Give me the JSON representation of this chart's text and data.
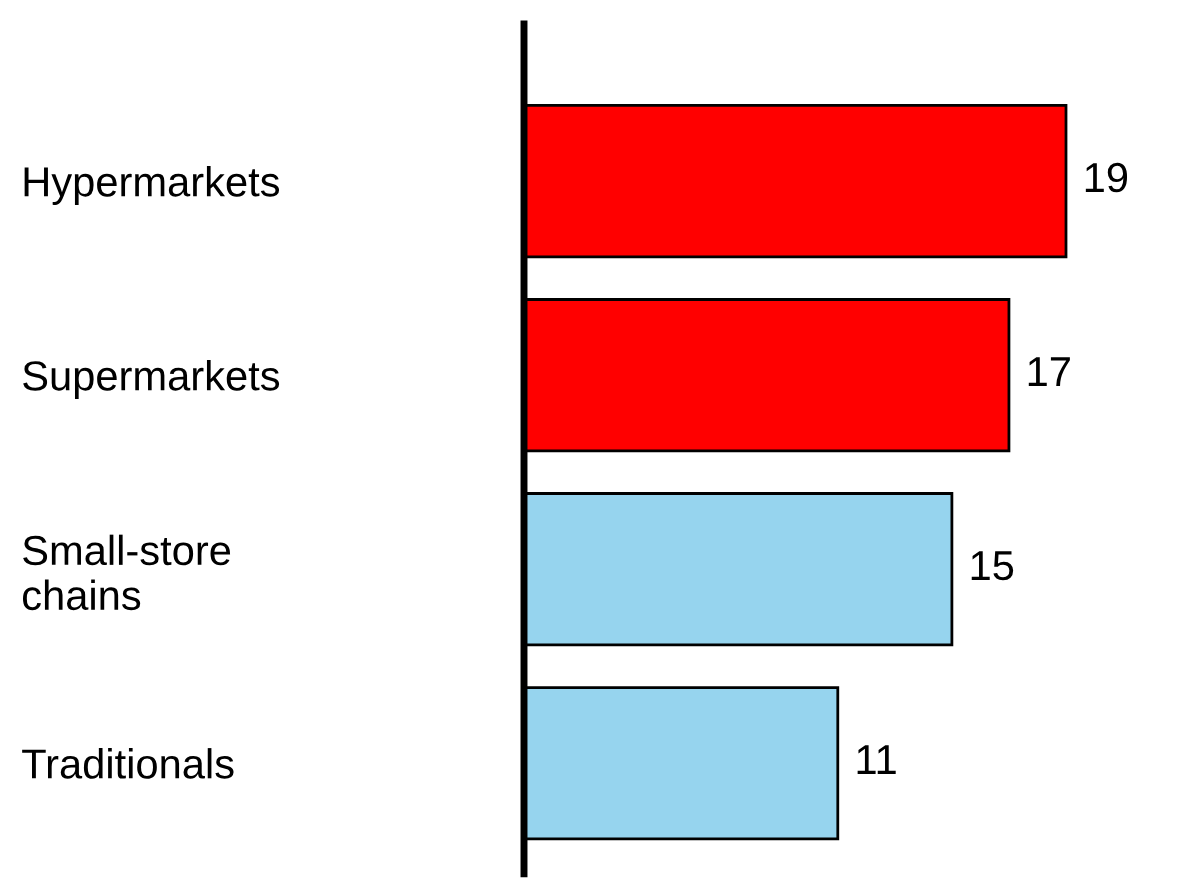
{
  "chart_data": {
    "type": "bar",
    "orientation": "horizontal",
    "categories": [
      "Hypermarkets",
      "Supermarkets",
      "Small-store\nchains",
      "Traditionals"
    ],
    "values": [
      19,
      17,
      15,
      11
    ],
    "colors": [
      "#ff0000",
      "#ff0000",
      "#96d4ee",
      "#96d4ee"
    ],
    "data_labels": true,
    "grid": false,
    "legend": false
  }
}
